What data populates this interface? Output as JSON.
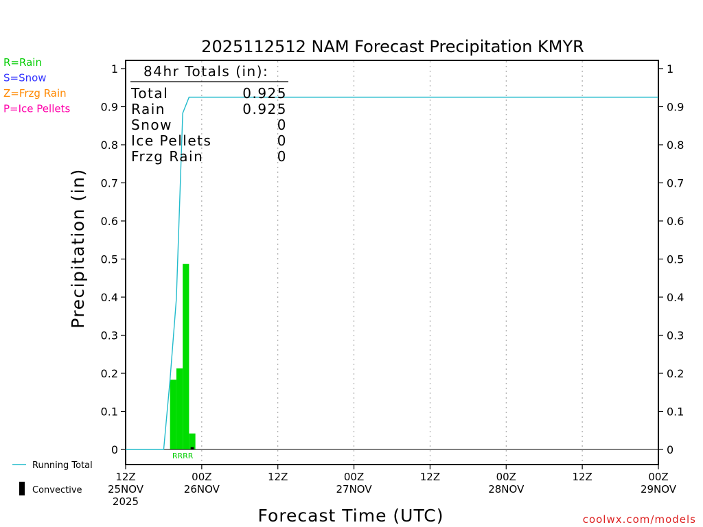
{
  "chart_data": {
    "type": "bar",
    "title": "2025112512 NAM Forecast Precipitation KMYR",
    "xlabel": "Forecast Time (UTC)",
    "ylabel": "Precipitation (in)",
    "ylim": [
      0,
      1
    ],
    "xlim_hours": [
      0,
      84
    ],
    "yticks": [
      0,
      0.1,
      0.2,
      0.3,
      0.4,
      0.5,
      0.6,
      0.7,
      0.8,
      0.9,
      1
    ],
    "ytick_labels": [
      "0",
      "0.1",
      "0.2",
      "0.3",
      "0.4",
      "0.5",
      "0.6",
      "0.7",
      "0.8",
      "0.9",
      "1"
    ],
    "xticks": [
      {
        "hour": 0,
        "line1": "12Z",
        "line2": "25NOV",
        "line3": "2025"
      },
      {
        "hour": 12,
        "line1": "00Z",
        "line2": "26NOV",
        "line3": ""
      },
      {
        "hour": 24,
        "line1": "12Z",
        "line2": "",
        "line3": ""
      },
      {
        "hour": 36,
        "line1": "00Z",
        "line2": "27NOV",
        "line3": ""
      },
      {
        "hour": 48,
        "line1": "12Z",
        "line2": "",
        "line3": ""
      },
      {
        "hour": 60,
        "line1": "00Z",
        "line2": "28NOV",
        "line3": ""
      },
      {
        "hour": 72,
        "line1": "12Z",
        "line2": "",
        "line3": ""
      },
      {
        "hour": 84,
        "line1": "00Z",
        "line2": "29NOV",
        "line3": ""
      }
    ],
    "rain_bars": [
      {
        "start_hour": 7,
        "end_hour": 8,
        "value": 0.183
      },
      {
        "start_hour": 8,
        "end_hour": 9,
        "value": 0.213
      },
      {
        "start_hour": 9,
        "end_hour": 10,
        "value": 0.487
      },
      {
        "start_hour": 10,
        "end_hour": 11,
        "value": 0.042
      }
    ],
    "convective_bars": [
      {
        "start_hour": 10,
        "end_hour": 11,
        "value": 0.006
      }
    ],
    "running_total": {
      "hours": [
        0,
        6,
        7,
        8,
        9,
        10,
        11,
        84
      ],
      "values": [
        0,
        0,
        0.183,
        0.396,
        0.883,
        0.925,
        0.925,
        0.925
      ]
    },
    "ptype_markers": {
      "text": "RRRR",
      "start_hour": 7,
      "end_hour": 11
    },
    "totals_box": {
      "header": "84hr Totals (in):",
      "rows": [
        {
          "label": "Total",
          "value": "0.925"
        },
        {
          "label": "Rain",
          "value": "0.925"
        },
        {
          "label": "Snow",
          "value": "0"
        },
        {
          "label": "Ice Pellets",
          "value": "0"
        },
        {
          "label": "Frzg Rain",
          "value": "0"
        }
      ]
    },
    "legend": {
      "ptypes": [
        {
          "text": "R=Rain",
          "color": "#00cc00"
        },
        {
          "text": "S=Snow",
          "color": "#3333ff"
        },
        {
          "text": "Z=Frzg Rain",
          "color": "#ff8800"
        },
        {
          "text": "P=Ice Pellets",
          "color": "#ff00aa"
        }
      ],
      "running_total_label": "Running Total",
      "convective_label": "Convective"
    },
    "colors": {
      "rain": "#00dd00",
      "running_total": "#22bbcc",
      "convective": "#000000",
      "grid": "#999999",
      "axis": "#000000"
    }
  },
  "credit": "coolwx.com/models"
}
